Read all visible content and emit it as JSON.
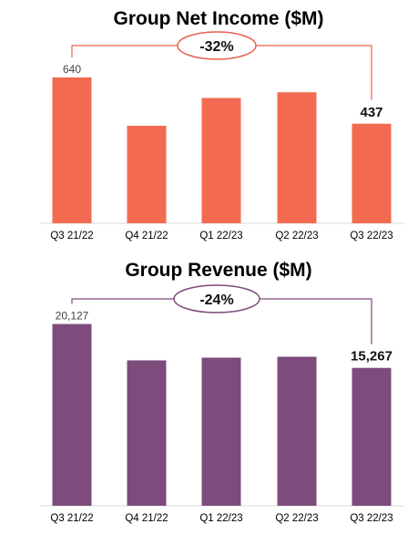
{
  "chart_data": [
    {
      "type": "bar",
      "title": "Group Net Income ($M)",
      "categories": [
        "Q3 21/22",
        "Q4 21/22",
        "Q1 22/23",
        "Q2 22/23",
        "Q3 22/23"
      ],
      "values": [
        640,
        428,
        550,
        575,
        437
      ],
      "data_labels": [
        "640",
        "",
        "",
        "",
        "437"
      ],
      "annotation": "-32%",
      "color": "#f26b50",
      "accent": "#e8604c",
      "xlabel": "",
      "ylabel": "",
      "ylim": [
        0,
        700
      ],
      "grid": false
    },
    {
      "type": "bar",
      "title": "Group Revenue ($M)",
      "categories": [
        "Q3 21/22",
        "Q4 21/22",
        "Q1 22/23",
        "Q2 22/23",
        "Q3 22/23"
      ],
      "values": [
        20127,
        16100,
        16400,
        16500,
        15267
      ],
      "data_labels": [
        "20,127",
        "",
        "",
        "",
        "15,267"
      ],
      "annotation": "-24%",
      "color": "#7d4b7c",
      "accent": "#7d4b7c",
      "xlabel": "",
      "ylabel": "",
      "ylim": [
        0,
        22000
      ],
      "grid": false
    }
  ]
}
